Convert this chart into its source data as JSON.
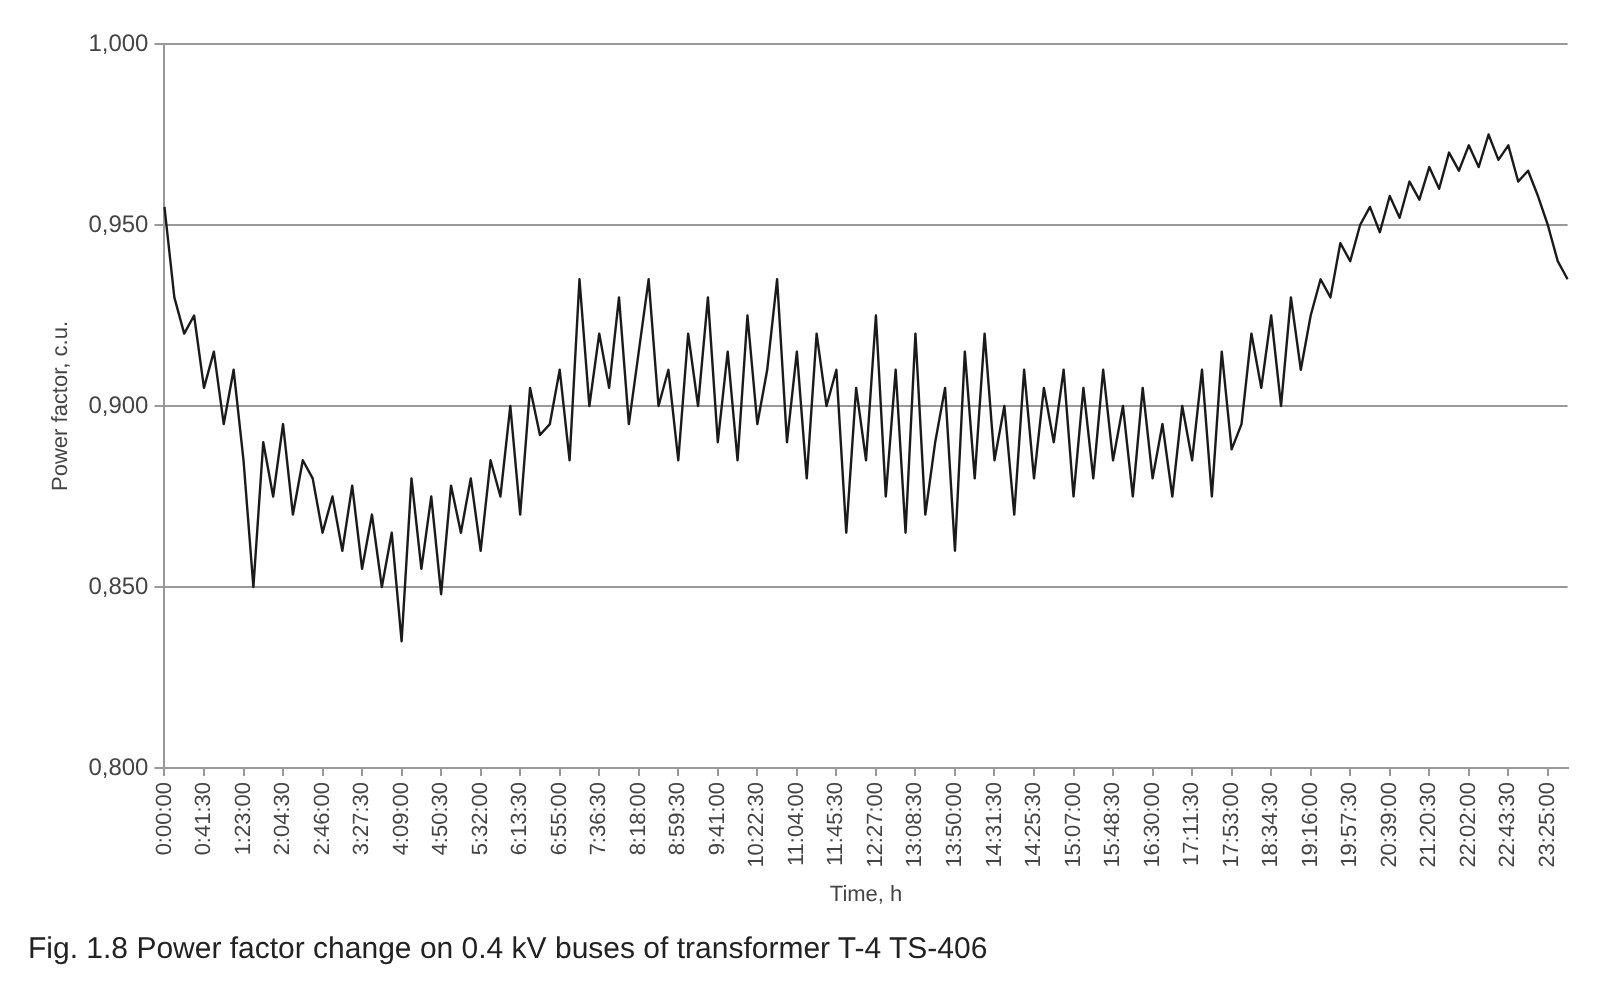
{
  "chart_data": {
    "type": "line",
    "xlabel": "Time, h",
    "ylabel": "Power factor, c.u.",
    "annotations": [
      "Fig. 1.8 Power factor change on 0.4 kV buses of transformer T-4 TS-406"
    ],
    "categories": [
      "0:00:00",
      null,
      null,
      null,
      "0:41:30",
      null,
      null,
      null,
      "1:23:00",
      null,
      null,
      null,
      "2:04:30",
      null,
      null,
      null,
      "2:46:00",
      null,
      null,
      null,
      "3:27:30",
      null,
      null,
      null,
      "4:09:00",
      null,
      null,
      null,
      "4:50:30",
      null,
      null,
      null,
      "5:32:00",
      null,
      null,
      null,
      "6:13:30",
      null,
      null,
      null,
      "6:55:00",
      null,
      null,
      null,
      "7:36:30",
      null,
      null,
      null,
      "8:18:00",
      null,
      null,
      null,
      "8:59:30",
      null,
      null,
      null,
      "9:41:00",
      null,
      null,
      null,
      "10:22:30",
      null,
      null,
      null,
      "11:04:00",
      null,
      null,
      null,
      "11:45:30",
      null,
      null,
      null,
      "12:27:00",
      null,
      null,
      null,
      "13:08:30",
      null,
      null,
      null,
      "13:50:00",
      null,
      null,
      null,
      "14:31:30",
      null,
      null,
      null,
      "14:25:30",
      null,
      null,
      null,
      "15:07:00",
      null,
      null,
      null,
      "15:48:30",
      null,
      null,
      null,
      "16:30:00",
      null,
      null,
      null,
      "17:11:30",
      null,
      null,
      null,
      "17:53:00",
      null,
      null,
      null,
      "18:34:30",
      null,
      null,
      null,
      "19:16:00",
      null,
      null,
      null,
      "19:57:30",
      null,
      null,
      null,
      "20:39:00",
      null,
      null,
      null,
      "21:20:30",
      null,
      null,
      null,
      "22:02:00",
      null,
      null,
      null,
      "22:43:30",
      null,
      null,
      null,
      "23:25:00",
      null,
      null
    ],
    "series": [
      {
        "color": "#1a1a1a",
        "values": [
          0.955,
          0.93,
          0.92,
          0.925,
          0.905,
          0.915,
          0.895,
          0.91,
          0.885,
          0.85,
          0.89,
          0.875,
          0.895,
          0.87,
          0.885,
          0.88,
          0.865,
          0.875,
          0.86,
          0.878,
          0.855,
          0.87,
          0.85,
          0.865,
          0.835,
          0.88,
          0.855,
          0.875,
          0.848,
          0.878,
          0.865,
          0.88,
          0.86,
          0.885,
          0.875,
          0.9,
          0.87,
          0.905,
          0.892,
          0.895,
          0.91,
          0.885,
          0.935,
          0.9,
          0.92,
          0.905,
          0.93,
          0.895,
          0.915,
          0.935,
          0.9,
          0.91,
          0.885,
          0.92,
          0.9,
          0.93,
          0.89,
          0.915,
          0.885,
          0.925,
          0.895,
          0.91,
          0.935,
          0.89,
          0.915,
          0.88,
          0.92,
          0.9,
          0.91,
          0.865,
          0.905,
          0.885,
          0.925,
          0.875,
          0.91,
          0.865,
          0.92,
          0.87,
          0.89,
          0.905,
          0.86,
          0.915,
          0.88,
          0.92,
          0.885,
          0.9,
          0.87,
          0.91,
          0.88,
          0.905,
          0.89,
          0.91,
          0.875,
          0.905,
          0.88,
          0.91,
          0.885,
          0.9,
          0.875,
          0.905,
          0.88,
          0.895,
          0.875,
          0.9,
          0.885,
          0.91,
          0.875,
          0.915,
          0.888,
          0.895,
          0.92,
          0.905,
          0.925,
          0.9,
          0.93,
          0.91,
          0.925,
          0.935,
          0.93,
          0.945,
          0.94,
          0.95,
          0.955,
          0.948,
          0.958,
          0.952,
          0.962,
          0.957,
          0.966,
          0.96,
          0.97,
          0.965,
          0.972,
          0.966,
          0.975,
          0.968,
          0.972,
          0.962,
          0.965,
          0.958,
          0.95,
          0.94,
          0.935
        ]
      }
    ],
    "ylim": [
      0.8,
      1.0
    ],
    "yticks": [
      {
        "value": 0.8,
        "label": "0,800"
      },
      {
        "value": 0.85,
        "label": "0,850"
      },
      {
        "value": 0.9,
        "label": "0,900"
      },
      {
        "value": 0.95,
        "label": "0,950"
      },
      {
        "value": 1.0,
        "label": "1,000"
      }
    ],
    "grid": "y",
    "legend": false
  }
}
